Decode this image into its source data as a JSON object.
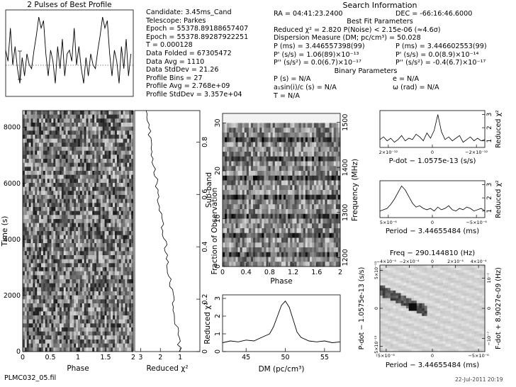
{
  "header": {
    "profile_title": "2 Pulses of Best Profile",
    "candidate": "Candidate:  3.45ms_Cand",
    "telescope": "Telescope:  Parkes",
    "epoch_topo": "Epoch    = 55378.89188657407",
    "epoch_bary": "Epoch    = 55378.89287922251",
    "t_sample": "T        = 0.000128",
    "data_folded": "Data Folded     = 67305472",
    "data_avg": "Data Avg        = 1110",
    "data_stddev": "Data StdDev     = 21.26",
    "profile_bins": "Profile Bins    = 27",
    "profile_avg": "Profile Avg     = 2.768e+09",
    "profile_stddev": "Profile StdDev  = 3.357e+04",
    "search_title": "Search Information",
    "ra": "RA       = 04:41:23.2400",
    "dec": "DEC      = -66:16:46.6000",
    "best_fit_title": "Best Fit Parameters",
    "reduced_chi2": "Reduced χ² = 2.820     P(Noise) < 2.15e-06     (≈4.6σ)",
    "dm_line": "Dispersion Measure (DM; pc/cm³) = 50.028",
    "p_topo": "P     (ms)  = 3.446557398(99)",
    "p_bary": "P     (ms)  = 3.446602553(99)",
    "pd_topo": "P'    (s/s)  = 1.06(89)×10⁻¹³",
    "pd_bary": "P'    (s/s)  = 0.0(8.9)×10⁻¹⁴",
    "pdd_topo": "P''   (s/s²) = 0.0(6.7)×10⁻¹⁷",
    "pdd_bary": "P''   (s/s²) = -0.4(6.7)×10⁻¹⁷",
    "binary_title": "Binary Parameters",
    "p_orb": "P    (s) = N/A",
    "asini": "a₁sin(i)/c (s) = N/A",
    "t_peri": "T     = N/A",
    "ecc": "e = N/A",
    "omega": "ω (rad) = N/A"
  },
  "footer": {
    "filename": "PLMC032_05.fil",
    "date": "22-Jul-2011 20:19"
  },
  "chart_data": [
    {
      "type": "line",
      "title": "2 Pulses of Best Profile",
      "x": [
        0,
        0.037,
        0.074,
        0.111,
        0.148,
        0.185,
        0.222,
        0.259,
        0.296,
        0.333,
        0.37,
        0.407,
        0.444,
        0.481,
        0.519,
        0.556,
        0.593,
        0.63,
        0.667,
        0.704,
        0.741,
        0.778,
        0.815,
        0.852,
        0.889,
        0.926,
        0.963,
        1.0,
        1.037,
        1.074,
        1.111,
        1.148,
        1.185,
        1.222,
        1.259,
        1.296,
        1.333,
        1.37,
        1.407,
        1.444,
        1.481,
        1.519,
        1.556,
        1.593,
        1.63,
        1.667,
        1.704,
        1.741,
        1.778,
        1.815,
        1.852,
        1.889,
        1.926,
        1.963
      ],
      "values": [
        0.55,
        0.4,
        0.85,
        0.35,
        0.6,
        0.3,
        0.1,
        0.45,
        0.2,
        0.5,
        0.35,
        0.3,
        0.55,
        0.75,
        1.0,
        0.85,
        0.95,
        0.5,
        0.2,
        0.55,
        0.4,
        0.1,
        0.6,
        0.3,
        0.7,
        0.2,
        0.5,
        0.55,
        0.4,
        0.85,
        0.35,
        0.6,
        0.3,
        0.1,
        0.45,
        0.2,
        0.5,
        0.35,
        0.3,
        0.55,
        0.75,
        1.0,
        0.85,
        0.95,
        0.5,
        0.2,
        0.55,
        0.4,
        0.1,
        0.6,
        0.3,
        0.7,
        0.2,
        0.5
      ]
    },
    {
      "type": "heatmap",
      "xlabel": "Phase",
      "ylabel": "Time (s)",
      "xticks": [
        "0",
        "0.5",
        "1",
        "1.5",
        "2"
      ],
      "yticks": [
        "0",
        "2000",
        "4000",
        "6000",
        "8000"
      ],
      "xlim": [
        0,
        2
      ],
      "ylim": [
        0,
        8600
      ]
    },
    {
      "type": "line",
      "xlabel": "Reduced χ²",
      "ylabel": "Fraction of Observation",
      "xticks": [
        "3",
        "2",
        "1"
      ],
      "yticks": [
        "0",
        "0.2",
        "0.4",
        "0.6",
        "0.8"
      ],
      "x_reversed": true
    },
    {
      "type": "heatmap",
      "xlabel": "Phase",
      "ylabel": "Sub-band",
      "ylabel_right": "Frequency (MHz)",
      "xticks": [
        "0",
        "0.4",
        "0.8",
        "1.2",
        "1.6",
        "2"
      ],
      "yticks": [
        "0",
        "10",
        "20",
        "30"
      ],
      "yticks_right": [
        "1200",
        "1300",
        "1400",
        "1500"
      ]
    },
    {
      "type": "line",
      "xlabel": "DM (pc/cm³)",
      "ylabel": "Reduced χ²",
      "xticks": [
        "45",
        "50",
        "55"
      ],
      "yticks": [
        "0",
        "1",
        "2",
        "3"
      ],
      "xlim": [
        42,
        57
      ],
      "ylim": [
        0,
        3.2
      ],
      "x": [
        42,
        43,
        44,
        45,
        46,
        47,
        48,
        48.5,
        49,
        49.5,
        50,
        50.5,
        51,
        51.5,
        52,
        53,
        54,
        55,
        56,
        57
      ],
      "values": [
        0.5,
        0.6,
        0.55,
        0.65,
        0.6,
        0.8,
        1.0,
        1.4,
        2.0,
        2.6,
        2.85,
        2.5,
        1.8,
        1.1,
        0.8,
        0.6,
        0.55,
        0.6,
        0.5,
        0.55
      ]
    },
    {
      "type": "line",
      "xlabel": "P-dot − 1.0575e-13 (s/s)",
      "ylabel": "Reduced χ²",
      "xticks": [
        "2×10⁻¹²",
        "0",
        "−2×10⁻¹²"
      ],
      "yticks": [
        "1",
        "2",
        "3"
      ],
      "values": [
        1.1,
        1.3,
        1.0,
        1.2,
        0.9,
        1.1,
        1.4,
        1.0,
        1.2,
        1.1,
        1.5,
        1.3,
        1.0,
        1.6,
        1.2,
        1.8,
        3.0,
        1.7,
        1.1,
        1.3,
        1.0,
        1.2,
        1.4,
        0.9,
        1.1,
        1.3,
        1.0,
        1.2,
        1.0,
        1.1
      ]
    },
    {
      "type": "line",
      "xlabel": "Period − 3.44655484 (ms)",
      "ylabel": "Reduced χ²",
      "xticks": [
        "5×10⁻⁶",
        "0",
        "−5×10⁻⁶"
      ],
      "yticks": [
        "1",
        "2",
        "3"
      ],
      "values": [
        1.0,
        1.1,
        1.2,
        1.5,
        1.9,
        2.4,
        2.9,
        2.6,
        2.1,
        1.6,
        1.3,
        1.4,
        1.2,
        1.1,
        1.2,
        1.0,
        1.3,
        1.1,
        1.2,
        1.4,
        1.1,
        1.0,
        1.2,
        1.1,
        1.3,
        1.2,
        1.0,
        1.1,
        1.2,
        1.0
      ]
    },
    {
      "type": "heatmap",
      "title": "Freq − 290.144810 (Hz)",
      "xlabel": "Period − 3.44655484 (ms)",
      "ylabel": "P-dot − 1.0575e-13 (s/s)",
      "ylabel_right": "F-dot + 8.9027e-09 (Hz)",
      "xticks": [
        "5×10⁻⁶",
        "0",
        "−5×10⁻⁶"
      ],
      "xticks_top": [
        "−4×10⁻⁴",
        "−2×10⁻⁴",
        "0",
        "2×10⁻⁴",
        "4×10⁻⁴"
      ],
      "yticks": [
        "−5×10⁻¹³",
        "0",
        "5×10⁻¹³"
      ],
      "yticks_right": [
        "10⁻⁷",
        "0",
        "−10⁻⁷"
      ]
    }
  ]
}
